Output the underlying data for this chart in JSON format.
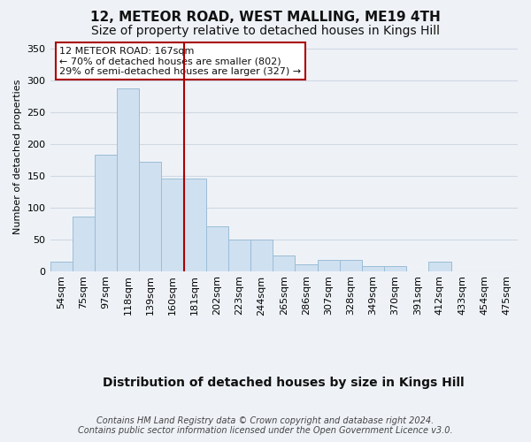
{
  "title": "12, METEOR ROAD, WEST MALLING, ME19 4TH",
  "subtitle": "Size of property relative to detached houses in Kings Hill",
  "xlabel": "Distribution of detached houses by size in Kings Hill",
  "ylabel": "Number of detached properties",
  "categories": [
    "54sqm",
    "75sqm",
    "97sqm",
    "118sqm",
    "139sqm",
    "160sqm",
    "181sqm",
    "202sqm",
    "223sqm",
    "244sqm",
    "265sqm",
    "286sqm",
    "307sqm",
    "328sqm",
    "349sqm",
    "370sqm",
    "391sqm",
    "412sqm",
    "433sqm",
    "454sqm",
    "475sqm"
  ],
  "values": [
    15,
    85,
    183,
    287,
    172,
    145,
    145,
    70,
    50,
    50,
    25,
    10,
    18,
    18,
    8,
    8,
    0,
    15,
    0,
    0,
    0
  ],
  "bar_color": "#cfe0f0",
  "bar_edge_color": "#9bbdd6",
  "marker_index": 5,
  "marker_color": "#aa0000",
  "annotation_text": "12 METEOR ROAD: 167sqm\n← 70% of detached houses are smaller (802)\n29% of semi-detached houses are larger (327) →",
  "annotation_box_color": "#ffffff",
  "annotation_box_edge_color": "#aa0000",
  "footnote": "Contains HM Land Registry data © Crown copyright and database right 2024.\nContains public sector information licensed under the Open Government Licence v3.0.",
  "ylim": [
    0,
    360
  ],
  "yticks": [
    0,
    50,
    100,
    150,
    200,
    250,
    300,
    350
  ],
  "title_fontsize": 11,
  "subtitle_fontsize": 10,
  "ylabel_fontsize": 8,
  "xlabel_fontsize": 10,
  "tick_fontsize": 8,
  "annotation_fontsize": 8,
  "footnote_fontsize": 7,
  "background_color": "#eef2f7",
  "plot_background_color": "#eef2f7",
  "grid_color": "#d0d8e4"
}
